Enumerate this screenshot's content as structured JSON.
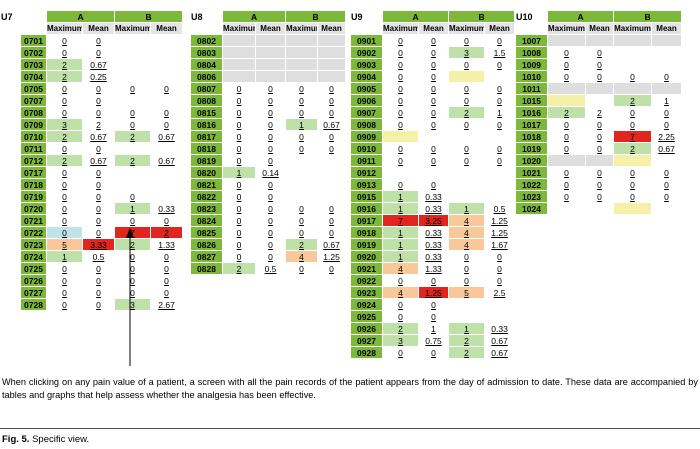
{
  "wards": [
    {
      "name": "U7",
      "groups": [
        "A",
        "B"
      ],
      "columns": [
        "Maximum",
        "Mean",
        "Maximum",
        "Mean"
      ],
      "rows": [
        {
          "room": "0701",
          "cells": [
            "0",
            "0",
            null,
            null
          ]
        },
        {
          "room": "0702",
          "cells": [
            "0",
            "0",
            null,
            null
          ]
        },
        {
          "room": "0703",
          "cells": [
            {
              "text": "2",
              "fill": "#bfe0a8"
            },
            "0.67",
            null,
            null
          ]
        },
        {
          "room": "0704",
          "cells": [
            {
              "text": "2",
              "fill": "#bfe0a8"
            },
            "0.25",
            null,
            null
          ]
        },
        {
          "room": "0705",
          "cells": [
            "0",
            "0",
            "0",
            "0"
          ]
        },
        {
          "room": "0707",
          "cells": [
            "0",
            "0",
            null,
            null
          ]
        },
        {
          "room": "0708",
          "cells": [
            "0",
            "0",
            "0",
            "0"
          ]
        },
        {
          "room": "0709",
          "cells": [
            {
              "text": "3",
              "fill": "#bfe0a8"
            },
            "2",
            "0",
            "0"
          ]
        },
        {
          "room": "0710",
          "cells": [
            {
              "text": "2",
              "fill": "#bfe0a8"
            },
            "0.67",
            {
              "text": "2",
              "fill": "#bfe0a8"
            },
            "0.67"
          ]
        },
        {
          "room": "0711",
          "cells": [
            "0",
            "0",
            null,
            null
          ]
        },
        {
          "room": "0712",
          "cells": [
            {
              "text": "2",
              "fill": "#bfe0a8"
            },
            "0.67",
            {
              "text": "2",
              "fill": "#bfe0a8"
            },
            "0.67"
          ]
        },
        {
          "room": "0717",
          "cells": [
            "0",
            "0",
            null,
            null
          ]
        },
        {
          "room": "0718",
          "cells": [
            "0",
            "0",
            null,
            null
          ]
        },
        {
          "room": "0719",
          "cells": [
            "0",
            "0",
            "0",
            null
          ]
        },
        {
          "room": "0720",
          "cells": [
            "0",
            "0",
            {
              "text": "1",
              "fill": "#bfe0a8"
            },
            "0.33"
          ]
        },
        {
          "room": "0721",
          "cells": [
            "0",
            "0",
            "0",
            "0"
          ]
        },
        {
          "room": "0722",
          "cells": [
            {
              "text": "0",
              "fill": "#bfe3ea"
            },
            "0",
            {
              "text": "7",
              "fill": "#e0261e"
            },
            {
              "text": "2",
              "fill": "#e0261e"
            }
          ]
        },
        {
          "room": "0723",
          "cells": [
            {
              "text": "5",
              "fill": "#f8c79a"
            },
            {
              "text": "3.33",
              "fill": "#e0261e"
            },
            {
              "text": "2",
              "fill": "#bfe0a8"
            },
            "1.33"
          ]
        },
        {
          "room": "0724",
          "cells": [
            {
              "text": "1",
              "fill": "#bfe0a8"
            },
            "0.5",
            "0",
            "0"
          ]
        },
        {
          "room": "0725",
          "cells": [
            "0",
            "0",
            "0",
            "0"
          ]
        },
        {
          "room": "0726",
          "cells": [
            "0",
            "0",
            "0",
            "0"
          ]
        },
        {
          "room": "0727",
          "cells": [
            "0",
            "0",
            "0",
            "0"
          ]
        },
        {
          "room": "0728",
          "cells": [
            "0",
            "0",
            {
              "text": "3",
              "fill": "#bfe0a8"
            },
            "2.67"
          ]
        }
      ]
    },
    {
      "name": "U8",
      "groups": [
        "A",
        "B"
      ],
      "columns": [
        "Maximum",
        "Mean",
        "Maximum",
        "Mean"
      ],
      "rows": [
        {
          "room": "0802",
          "cells": [
            {
              "fill": "#dedede"
            },
            {
              "fill": "#dedede"
            },
            {
              "fill": "#dedede"
            },
            {
              "fill": "#dedede"
            }
          ]
        },
        {
          "room": "0803",
          "cells": [
            {
              "fill": "#dedede"
            },
            {
              "fill": "#dedede"
            },
            {
              "fill": "#dedede"
            },
            {
              "fill": "#dedede"
            }
          ]
        },
        {
          "room": "0804",
          "cells": [
            {
              "fill": "#dedede"
            },
            {
              "fill": "#dedede"
            },
            {
              "fill": "#dedede"
            },
            {
              "fill": "#dedede"
            }
          ]
        },
        {
          "room": "0806",
          "cells": [
            {
              "fill": "#dedede"
            },
            {
              "fill": "#dedede"
            },
            {
              "fill": "#dedede"
            },
            {
              "fill": "#dedede"
            }
          ]
        },
        {
          "room": "0807",
          "cells": [
            "0",
            "0",
            "0",
            "0"
          ]
        },
        {
          "room": "0808",
          "cells": [
            "0",
            "0",
            "0",
            "0"
          ]
        },
        {
          "room": "0815",
          "cells": [
            "0",
            "0",
            "0",
            "0"
          ]
        },
        {
          "room": "0816",
          "cells": [
            "0",
            "0",
            {
              "text": "1",
              "fill": "#bfe0a8"
            },
            "0.67"
          ]
        },
        {
          "room": "0817",
          "cells": [
            "0",
            "0",
            "0",
            "0"
          ]
        },
        {
          "room": "0818",
          "cells": [
            "0",
            "0",
            "0",
            "0"
          ]
        },
        {
          "room": "0819",
          "cells": [
            "0",
            "0",
            null,
            null
          ]
        },
        {
          "room": "0820",
          "cells": [
            {
              "text": "1",
              "fill": "#bfe0a8"
            },
            "0.14",
            null,
            null
          ]
        },
        {
          "room": "0821",
          "cells": [
            "0",
            "0",
            null,
            null
          ]
        },
        {
          "room": "0822",
          "cells": [
            "0",
            "0",
            null,
            null
          ]
        },
        {
          "room": "0823",
          "cells": [
            "0",
            "0",
            "0",
            "0"
          ]
        },
        {
          "room": "0824",
          "cells": [
            "0",
            "0",
            "0",
            "0"
          ]
        },
        {
          "room": "0825",
          "cells": [
            "0",
            "0",
            "0",
            "0"
          ]
        },
        {
          "room": "0826",
          "cells": [
            "0",
            "0",
            {
              "text": "2",
              "fill": "#bfe0a8"
            },
            "0.67"
          ]
        },
        {
          "room": "0827",
          "cells": [
            "0",
            "0",
            {
              "text": "4",
              "fill": "#f8c79a"
            },
            "1.25"
          ]
        },
        {
          "room": "0828",
          "cells": [
            {
              "text": "2",
              "fill": "#bfe0a8"
            },
            "0.5",
            "0",
            "0"
          ]
        }
      ]
    },
    {
      "name": "U9",
      "groups": [
        "A",
        "B"
      ],
      "columns": [
        "Maximum",
        "Mean",
        "Maximum",
        "Mean"
      ],
      "rows": [
        {
          "room": "0901",
          "cells": [
            "0",
            "0",
            "0",
            "0"
          ]
        },
        {
          "room": "0902",
          "cells": [
            "0",
            "0",
            {
              "text": "3",
              "fill": "#bfe0a8"
            },
            "1.5"
          ]
        },
        {
          "room": "0903",
          "cells": [
            "0",
            "0",
            "0",
            "0"
          ]
        },
        {
          "room": "0904",
          "cells": [
            "0",
            "0",
            {
              "fill": "#f5f0a8"
            },
            null
          ]
        },
        {
          "room": "0905",
          "cells": [
            "0",
            "0",
            "0",
            "0"
          ]
        },
        {
          "room": "0906",
          "cells": [
            "0",
            "0",
            "0",
            "0"
          ]
        },
        {
          "room": "0907",
          "cells": [
            "0",
            "0",
            {
              "text": "2",
              "fill": "#bfe0a8"
            },
            "1"
          ]
        },
        {
          "room": "0908",
          "cells": [
            "0",
            "0",
            "0",
            "0"
          ]
        },
        {
          "room": "0909",
          "cells": [
            {
              "fill": "#f5f0a8"
            },
            null,
            null,
            null
          ]
        },
        {
          "room": "0910",
          "cells": [
            "0",
            "0",
            "0",
            "0"
          ]
        },
        {
          "room": "0911",
          "cells": [
            "0",
            "0",
            "0",
            "0"
          ]
        },
        {
          "room": "0912",
          "cells": [
            null,
            null,
            null,
            null
          ]
        },
        {
          "room": "0913",
          "cells": [
            "0",
            "0",
            null,
            null
          ]
        },
        {
          "room": "0915",
          "cells": [
            {
              "text": "1",
              "fill": "#bfe0a8"
            },
            "0.33",
            null,
            null
          ]
        },
        {
          "room": "0916",
          "cells": [
            {
              "text": "1",
              "fill": "#bfe0a8"
            },
            "0.33",
            {
              "text": "1",
              "fill": "#bfe0a8"
            },
            "0.5"
          ]
        },
        {
          "room": "0917",
          "cells": [
            {
              "text": "7",
              "fill": "#e0261e"
            },
            {
              "text": "3.25",
              "fill": "#e0261e"
            },
            {
              "text": "4",
              "fill": "#f8c79a"
            },
            "1.25"
          ]
        },
        {
          "room": "0918",
          "cells": [
            {
              "text": "1",
              "fill": "#bfe0a8"
            },
            "0.33",
            {
              "text": "4",
              "fill": "#f8c79a"
            },
            "1.25"
          ]
        },
        {
          "room": "0919",
          "cells": [
            {
              "text": "1",
              "fill": "#bfe0a8"
            },
            "0.33",
            {
              "text": "4",
              "fill": "#f8c79a"
            },
            "1.67"
          ]
        },
        {
          "room": "0920",
          "cells": [
            {
              "text": "1",
              "fill": "#bfe0a8"
            },
            "0.33",
            "0",
            "0"
          ]
        },
        {
          "room": "0921",
          "cells": [
            {
              "text": "4",
              "fill": "#f8c79a"
            },
            "1.33",
            "0",
            "0"
          ]
        },
        {
          "room": "0922",
          "cells": [
            "0",
            "0",
            "0",
            "0"
          ]
        },
        {
          "room": "0923",
          "cells": [
            {
              "text": "4",
              "fill": "#f8c79a"
            },
            {
              "text": "1.25",
              "fill": "#e0261e"
            },
            {
              "text": "5",
              "fill": "#f8c79a"
            },
            "2.5"
          ]
        },
        {
          "room": "0924",
          "cells": [
            "0",
            "0",
            null,
            null
          ]
        },
        {
          "room": "0925",
          "cells": [
            "0",
            "0",
            null,
            null
          ]
        },
        {
          "room": "0926",
          "cells": [
            {
              "text": "2",
              "fill": "#bfe0a8"
            },
            "1",
            {
              "text": "1",
              "fill": "#bfe0a8"
            },
            "0.33"
          ]
        },
        {
          "room": "0927",
          "cells": [
            {
              "text": "3",
              "fill": "#bfe0a8"
            },
            "0.75",
            {
              "text": "2",
              "fill": "#bfe0a8"
            },
            "0.67"
          ]
        },
        {
          "room": "0928",
          "cells": [
            "0",
            "0",
            {
              "text": "2",
              "fill": "#bfe0a8"
            },
            "0.67"
          ]
        }
      ]
    },
    {
      "name": "U10",
      "groups": [
        "A",
        "B"
      ],
      "columns": [
        "Maximum",
        "Mean",
        "Maximum",
        "Mean"
      ],
      "rows": [
        {
          "room": "1007",
          "cells": [
            {
              "fill": "#dedede"
            },
            {
              "fill": "#dedede"
            },
            {
              "fill": "#dedede"
            },
            {
              "fill": "#dedede"
            }
          ]
        },
        {
          "room": "1008",
          "cells": [
            "0",
            "0",
            null,
            null
          ]
        },
        {
          "room": "1009",
          "cells": [
            "0",
            "0",
            null,
            null
          ]
        },
        {
          "room": "1010",
          "cells": [
            "0",
            "0",
            "0",
            "0"
          ]
        },
        {
          "room": "1011",
          "cells": [
            {
              "fill": "#dedede"
            },
            {
              "fill": "#dedede"
            },
            {
              "fill": "#dedede"
            },
            {
              "fill": "#dedede"
            }
          ]
        },
        {
          "room": "1015",
          "cells": [
            {
              "fill": "#f5f0a8"
            },
            null,
            {
              "text": "2",
              "fill": "#bfe0a8"
            },
            "1"
          ]
        },
        {
          "room": "1016",
          "cells": [
            {
              "text": "2",
              "fill": "#bfe0a8"
            },
            "2",
            "0",
            "0"
          ]
        },
        {
          "room": "1017",
          "cells": [
            "0",
            "0",
            "0",
            "0"
          ]
        },
        {
          "room": "1018",
          "cells": [
            "0",
            "0",
            {
              "text": "7",
              "fill": "#e0261e"
            },
            "2.25"
          ]
        },
        {
          "room": "1019",
          "cells": [
            "0",
            "0",
            {
              "text": "2",
              "fill": "#bfe0a8"
            },
            "0.67"
          ]
        },
        {
          "room": "1020",
          "cells": [
            {
              "fill": "#dedede"
            },
            {
              "fill": "#dedede"
            },
            {
              "fill": "#f5f0a8"
            },
            null
          ]
        },
        {
          "room": "1021",
          "cells": [
            "0",
            "0",
            "0",
            "0"
          ]
        },
        {
          "room": "1022",
          "cells": [
            "0",
            "0",
            "0",
            "0"
          ]
        },
        {
          "room": "1023",
          "cells": [
            "0",
            "0",
            "0",
            "0"
          ]
        },
        {
          "room": "1024",
          "cells": [
            null,
            null,
            {
              "fill": "#f5f0a8"
            },
            null
          ]
        }
      ]
    }
  ],
  "caption": "When clicking on any pain value of a patient, a screen with all the pain records of the patient appears from the day of admission to date. These data are accompanied by tables and graphs that help assess whether the analgesia has been effective.",
  "figure": {
    "label": "Fig. 5.",
    "title": "Specific view."
  }
}
